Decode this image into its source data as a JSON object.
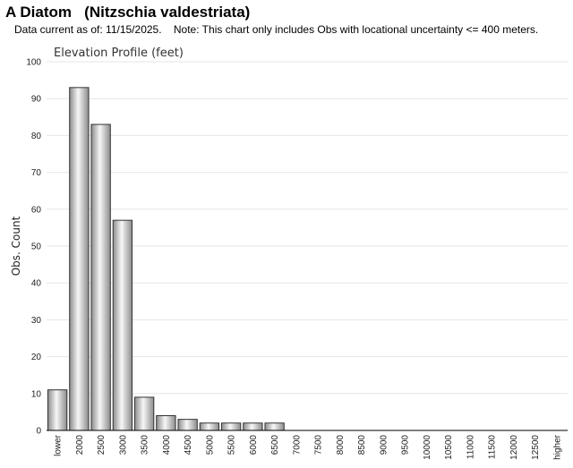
{
  "page": {
    "title": "A Diatom   (Nitzschia valdestriata)",
    "note": "Data current as of: 11/15/2025.    Note: This chart only includes Obs with locational uncertainty <= 400 meters."
  },
  "chart_data": {
    "type": "bar",
    "title": "Elevation Profile (feet)",
    "xlabel": "",
    "ylabel": "Obs. Count",
    "ylim": [
      0,
      100
    ],
    "yticks": [
      0,
      10,
      20,
      30,
      40,
      50,
      60,
      70,
      80,
      90,
      100
    ],
    "grid": true,
    "categories": [
      "lower",
      "2000",
      "2500",
      "3000",
      "3500",
      "4000",
      "4500",
      "5000",
      "5500",
      "6000",
      "6500",
      "7000",
      "7500",
      "8000",
      "8500",
      "9000",
      "9500",
      "10000",
      "10500",
      "11000",
      "11500",
      "12000",
      "12500",
      "higher"
    ],
    "values": [
      11,
      93,
      83,
      57,
      9,
      4,
      3,
      2,
      2,
      2,
      2,
      0,
      0,
      0,
      0,
      0,
      0,
      0,
      0,
      0,
      0,
      0,
      0,
      0
    ],
    "colors": {
      "bar_light": "#f7f7f7",
      "bar_dark": "#8c8c8c",
      "bar_stroke": "#333333",
      "grid": "#e6e6e6"
    }
  }
}
